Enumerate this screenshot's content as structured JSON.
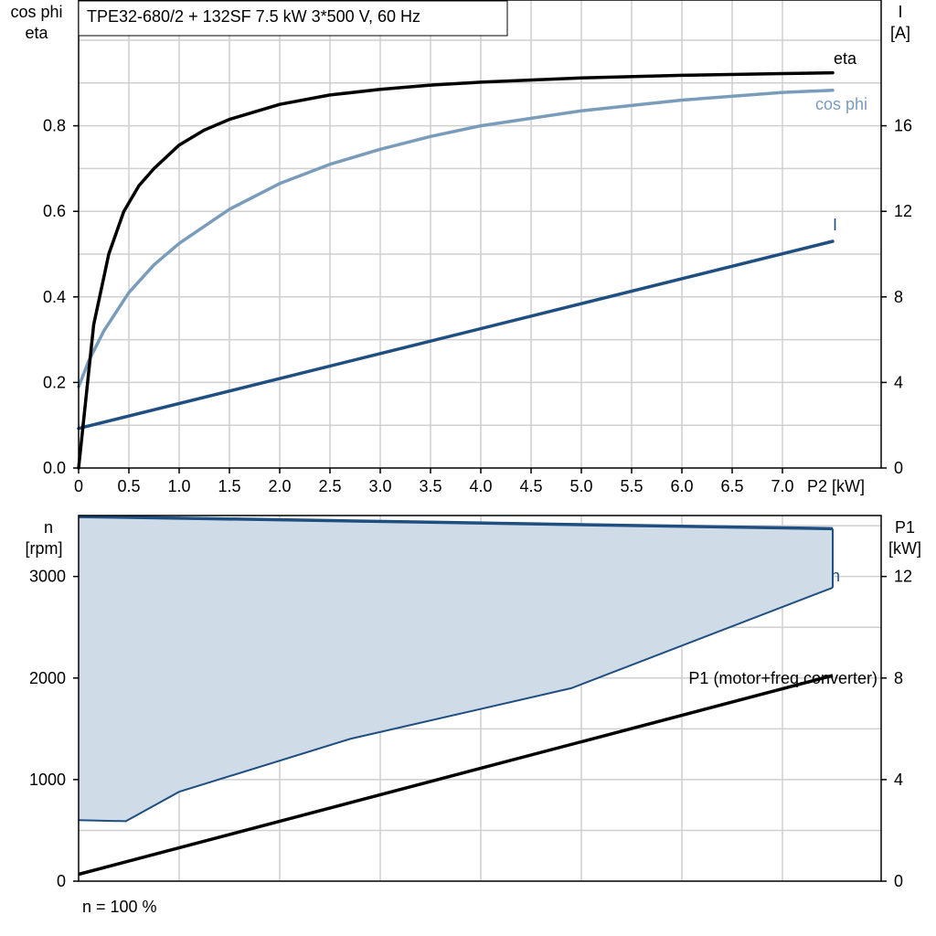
{
  "chart_data": [
    {
      "type": "line",
      "title": "TPE32-680/2 + 132SF   7.5 kW   3*500 V, 60 Hz",
      "xlabel": "P2 [kW]",
      "ylabel_left": [
        "cos phi",
        "eta"
      ],
      "ylabel_right": [
        "I",
        "[A]"
      ],
      "xlim": [
        0,
        7.5
      ],
      "ylim_left": [
        0,
        1.0
      ],
      "ylim_right": [
        0,
        20
      ],
      "x_ticks": [
        "0",
        "0.5",
        "1.0",
        "1.5",
        "2.0",
        "2.5",
        "3.0",
        "3.5",
        "4.0",
        "4.5",
        "5.0",
        "5.5",
        "6.0",
        "6.5",
        "7.0"
      ],
      "y_ticks_left": [
        "0.0",
        "0.2",
        "0.4",
        "0.6",
        "0.8"
      ],
      "y_ticks_right": [
        "0",
        "4",
        "8",
        "12",
        "16"
      ],
      "grid": true,
      "series": [
        {
          "name": "eta",
          "axis": "left",
          "color": "#000000",
          "x": [
            0,
            0.15,
            0.3,
            0.45,
            0.6,
            0.75,
            1.0,
            1.25,
            1.5,
            2.0,
            2.5,
            3.0,
            3.5,
            4.0,
            5.0,
            6.0,
            7.0,
            7.5
          ],
          "y": [
            0,
            0.335,
            0.5,
            0.6,
            0.66,
            0.7,
            0.755,
            0.79,
            0.815,
            0.85,
            0.872,
            0.885,
            0.895,
            0.902,
            0.912,
            0.918,
            0.922,
            0.924
          ]
        },
        {
          "name": "cos phi",
          "axis": "left",
          "color": "#7a9cbb",
          "x": [
            0,
            0.1,
            0.25,
            0.5,
            0.75,
            1.0,
            1.5,
            2.0,
            2.5,
            3.0,
            3.5,
            4.0,
            5.0,
            6.0,
            7.0,
            7.5
          ],
          "y": [
            0.19,
            0.25,
            0.32,
            0.41,
            0.475,
            0.525,
            0.605,
            0.665,
            0.71,
            0.745,
            0.775,
            0.8,
            0.835,
            0.86,
            0.878,
            0.883
          ]
        },
        {
          "name": "I",
          "axis": "right",
          "color": "#1f4e80",
          "x": [
            0,
            7.5
          ],
          "y": [
            1.85,
            10.6
          ]
        }
      ]
    },
    {
      "type": "area",
      "xlim": [
        0,
        7.5
      ],
      "ylabel_left": [
        "n",
        "[rpm]"
      ],
      "ylabel_right": [
        "P1",
        "[kW]"
      ],
      "ylim_left": [
        0,
        3600
      ],
      "ylim_right": [
        0,
        14.4
      ],
      "y_ticks_left": [
        "0",
        "1000",
        "2000",
        "3000"
      ],
      "y_ticks_right": [
        "0",
        "4",
        "8",
        "12"
      ],
      "grid": true,
      "note": "n = 100 %",
      "series": [
        {
          "name": "n",
          "axis": "left",
          "color": "#1f4e80",
          "x": [
            0,
            7.5
          ],
          "y": [
            3590,
            3470
          ]
        },
        {
          "name": "n",
          "axis": "left",
          "role": "lower boundary of speed range",
          "color": "#1f4e80",
          "x": [
            0,
            0.47,
            1.0,
            2.7,
            4.9,
            7.5
          ],
          "y": [
            600,
            590,
            880,
            1400,
            1900,
            2890
          ]
        },
        {
          "name": "P1 (motor+freq.converter)",
          "axis": "right",
          "color": "#000000",
          "x": [
            0,
            7.5
          ],
          "y": [
            0.27,
            8.1
          ]
        }
      ],
      "fill_color": "#cfdbe7"
    }
  ]
}
